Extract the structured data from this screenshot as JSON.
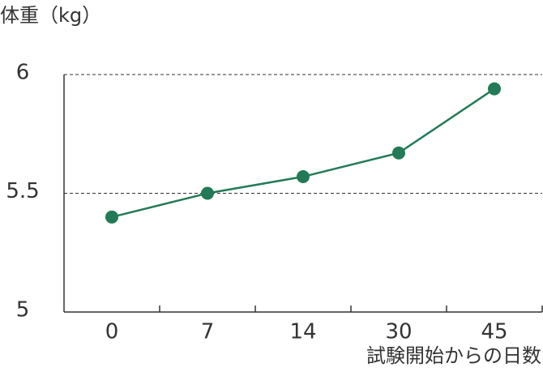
{
  "chart_data": {
    "type": "line",
    "title": "体重（kg）",
    "x_label": "試験開始からの日数",
    "categories": [
      "0",
      "7",
      "14",
      "30",
      "45"
    ],
    "values": [
      5.4,
      5.5,
      5.57,
      5.67,
      5.94
    ],
    "color": "#237a57",
    "ylim": [
      5,
      6
    ],
    "yticks": [
      5,
      5.5,
      6
    ],
    "grid": true
  }
}
